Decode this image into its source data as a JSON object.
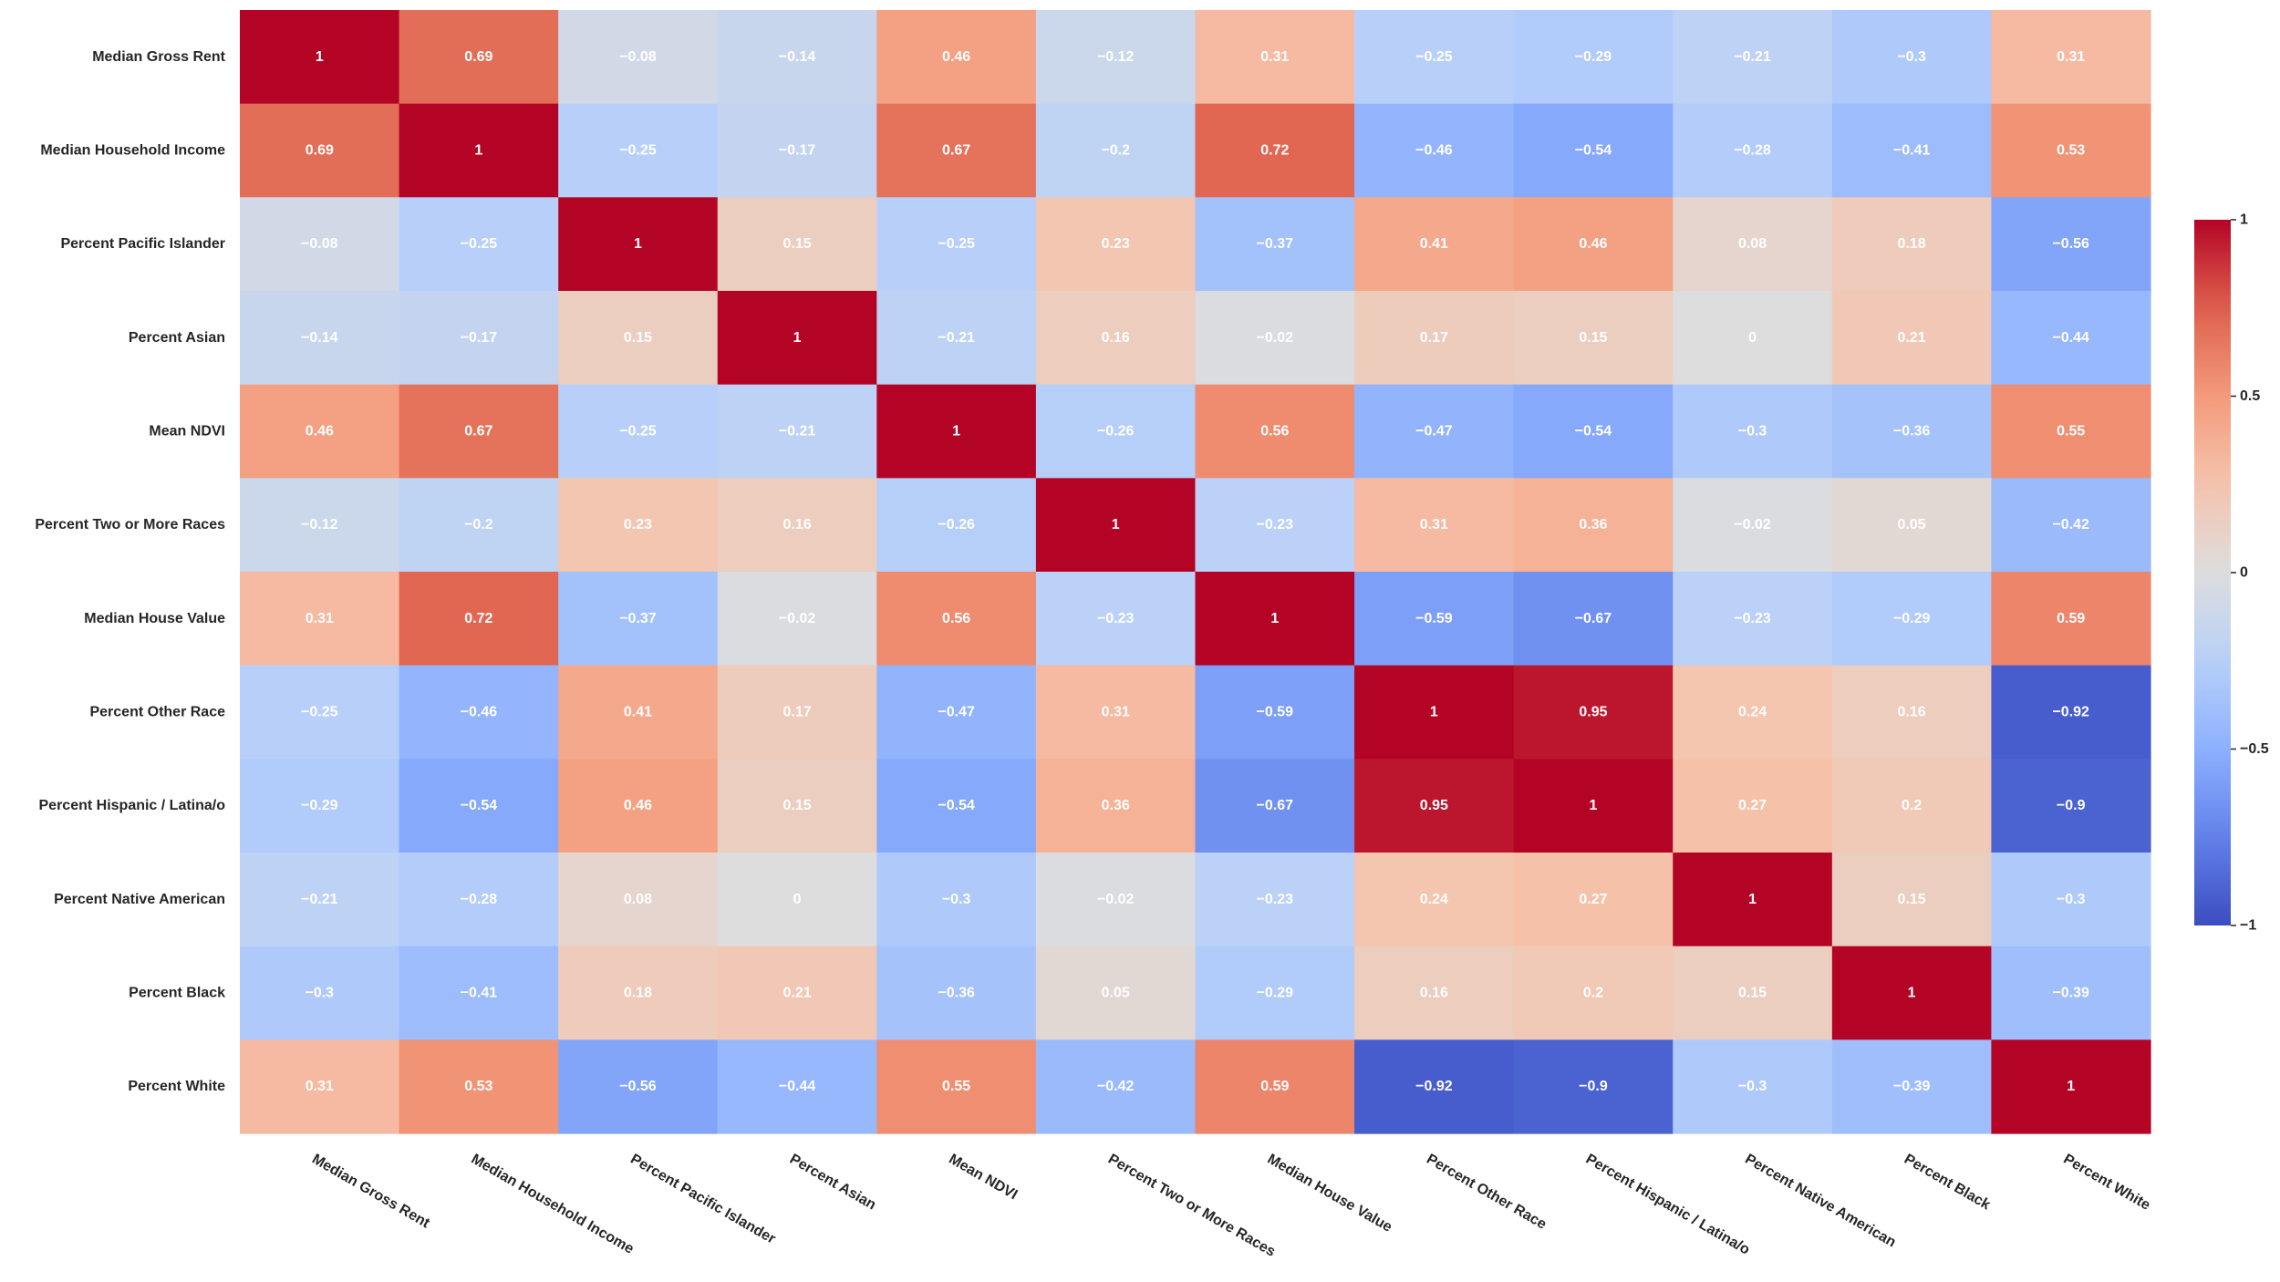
{
  "chart_data": {
    "type": "heatmap",
    "title": "",
    "xlabel": "",
    "ylabel": "",
    "colormap": "coolwarm",
    "vmin": -1,
    "vmax": 1,
    "annotated": true,
    "colorbar": {
      "position": "right",
      "ticks": [
        1,
        0.5,
        0,
        -0.5,
        -1
      ],
      "tick_labels": [
        "1",
        "0.5",
        "0",
        "−0.5",
        "−1"
      ]
    },
    "rows": [
      "Median Gross Rent",
      "Median Household Income",
      "Percent Pacific Islander",
      "Percent Asian",
      "Mean NDVI",
      "Percent Two or More Races",
      "Median House Value",
      "Percent Other Race",
      "Percent Hispanic / Latina/o",
      "Percent Native American",
      "Percent Black",
      "Percent White"
    ],
    "columns": [
      "Median Gross Rent",
      "Median Household Income",
      "Percent Pacific Islander",
      "Percent Asian",
      "Mean NDVI",
      "Percent Two or More Races",
      "Median House Value",
      "Percent Other Race",
      "Percent Hispanic / Latina/o",
      "Percent Native American",
      "Percent Black",
      "Percent White"
    ],
    "values": [
      [
        1,
        0.69,
        -0.08,
        -0.14,
        0.46,
        -0.12,
        0.31,
        -0.25,
        -0.29,
        -0.21,
        -0.3,
        0.31
      ],
      [
        0.69,
        1,
        -0.25,
        -0.17,
        0.67,
        -0.2,
        0.72,
        -0.46,
        -0.54,
        -0.28,
        -0.41,
        0.53
      ],
      [
        -0.08,
        -0.25,
        1,
        0.15,
        -0.25,
        0.23,
        -0.37,
        0.41,
        0.46,
        0.08,
        0.18,
        -0.56
      ],
      [
        -0.14,
        -0.17,
        0.15,
        1,
        -0.21,
        0.16,
        -0.02,
        0.17,
        0.15,
        0,
        0.21,
        -0.44
      ],
      [
        0.46,
        0.67,
        -0.25,
        -0.21,
        1,
        -0.26,
        0.56,
        -0.47,
        -0.54,
        -0.3,
        -0.36,
        0.55
      ],
      [
        -0.12,
        -0.2,
        0.23,
        0.16,
        -0.26,
        1,
        -0.23,
        0.31,
        0.36,
        -0.02,
        0.05,
        -0.42
      ],
      [
        0.31,
        0.72,
        -0.37,
        -0.02,
        0.56,
        -0.23,
        1,
        -0.59,
        -0.67,
        -0.23,
        -0.29,
        0.59
      ],
      [
        -0.25,
        -0.46,
        0.41,
        0.17,
        -0.47,
        0.31,
        -0.59,
        1,
        0.95,
        0.24,
        0.16,
        -0.92
      ],
      [
        -0.29,
        -0.54,
        0.46,
        0.15,
        -0.54,
        0.36,
        -0.67,
        0.95,
        1,
        0.27,
        0.2,
        -0.9
      ],
      [
        -0.21,
        -0.28,
        0.08,
        0,
        -0.3,
        -0.02,
        -0.23,
        0.24,
        0.27,
        1,
        0.15,
        -0.3
      ],
      [
        -0.3,
        -0.41,
        0.18,
        0.21,
        -0.36,
        0.05,
        -0.29,
        0.16,
        0.2,
        0.15,
        1,
        -0.39
      ],
      [
        0.31,
        0.53,
        -0.56,
        -0.44,
        0.55,
        -0.42,
        0.59,
        -0.92,
        -0.9,
        -0.3,
        -0.39,
        1
      ]
    ]
  }
}
